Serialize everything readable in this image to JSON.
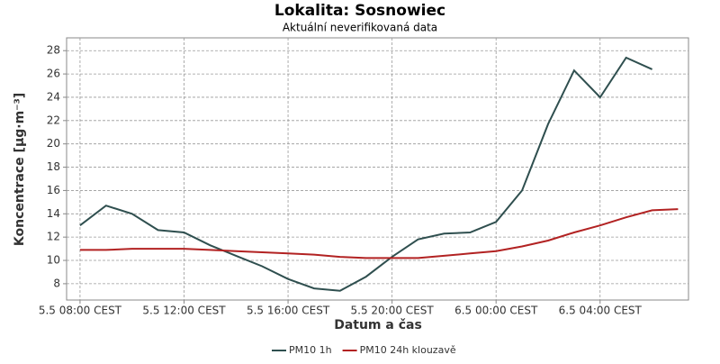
{
  "chart_data": {
    "type": "line",
    "title": "Lokalita: Sosnowiec",
    "subtitle": "Aktuální neverifikovaná data",
    "x_label": "Datum a čas",
    "y_label": "Koncentrace [µg·m⁻³]",
    "x": [
      "5.5 08:00 CEST",
      "5.5 09:00 CEST",
      "5.5 10:00 CEST",
      "5.5 11:00 CEST",
      "5.5 12:00 CEST",
      "5.5 13:00 CEST",
      "5.5 14:00 CEST",
      "5.5 15:00 CEST",
      "5.5 16:00 CEST",
      "5.5 17:00 CEST",
      "5.5 18:00 CEST",
      "5.5 19:00 CEST",
      "5.5 20:00 CEST",
      "5.5 21:00 CEST",
      "5.5 22:00 CEST",
      "5.5 23:00 CEST",
      "6.5 00:00 CEST",
      "6.5 01:00 CEST",
      "6.5 02:00 CEST",
      "6.5 03:00 CEST",
      "6.5 04:00 CEST",
      "6.5 05:00 CEST",
      "6.5 06:00 CEST",
      "6.5 07:00 CEST"
    ],
    "series": [
      {
        "name": "PM10 1h",
        "color": "#2f4f4f",
        "values": [
          13.0,
          14.7,
          14.0,
          12.6,
          12.4,
          11.3,
          10.4,
          9.5,
          8.4,
          7.6,
          7.4,
          8.6,
          10.3,
          11.8,
          12.3,
          12.4,
          13.3,
          16.0,
          21.7,
          26.3,
          24.0,
          27.4,
          26.4,
          null
        ]
      },
      {
        "name": "PM10 24h klouzavě",
        "color": "#b22222",
        "values": [
          10.9,
          10.9,
          11.0,
          11.0,
          11.0,
          10.9,
          10.8,
          10.7,
          10.6,
          10.5,
          10.3,
          10.2,
          10.2,
          10.2,
          10.4,
          10.6,
          10.8,
          11.2,
          11.7,
          12.4,
          13.0,
          13.7,
          14.3,
          14.4
        ]
      }
    ],
    "xlim": [
      "5.5 07:29 CEST",
      "6.5 07:24 CEST"
    ],
    "xticks": [
      "5.5 08:00 CEST",
      "5.5 12:00 CEST",
      "5.5 16:00 CEST",
      "5.5 20:00 CEST",
      "6.5 00:00 CEST",
      "6.5 04:00 CEST"
    ],
    "ylim": [
      6.6,
      29.1
    ],
    "yticks": [
      8,
      10,
      12,
      14,
      16,
      18,
      20,
      22,
      24,
      26,
      28
    ],
    "grid": true,
    "legend": "bottom"
  }
}
